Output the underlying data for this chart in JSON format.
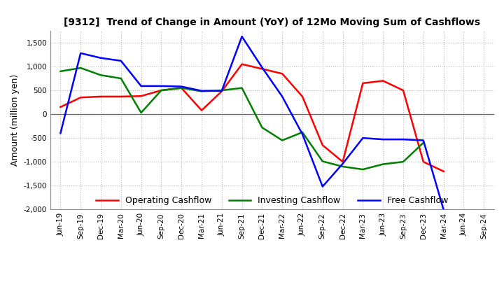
{
  "title": "[9312]  Trend of Change in Amount (YoY) of 12Mo Moving Sum of Cashflows",
  "ylabel": "Amount (million yen)",
  "xlabels": [
    "Jun-19",
    "Sep-19",
    "Dec-19",
    "Mar-20",
    "Jun-20",
    "Sep-20",
    "Dec-20",
    "Mar-21",
    "Jun-21",
    "Sep-21",
    "Dec-21",
    "Mar-22",
    "Jun-22",
    "Sep-22",
    "Dec-22",
    "Mar-23",
    "Jun-23",
    "Sep-23",
    "Dec-23",
    "Mar-24",
    "Jun-24",
    "Sep-24"
  ],
  "operating": [
    150,
    350,
    370,
    370,
    380,
    500,
    550,
    80,
    480,
    1050,
    950,
    850,
    370,
    -650,
    -1000,
    650,
    700,
    500,
    -1000,
    -1200,
    null,
    null
  ],
  "investing": [
    900,
    970,
    820,
    750,
    30,
    500,
    550,
    480,
    500,
    550,
    -280,
    -550,
    -380,
    -990,
    -1100,
    -1160,
    -1050,
    -1000,
    -600,
    null,
    null,
    null
  ],
  "free": [
    -400,
    1280,
    1180,
    1120,
    590,
    590,
    580,
    490,
    490,
    1630,
    980,
    370,
    -420,
    -1520,
    -1040,
    -500,
    -530,
    -530,
    -550,
    -2000,
    null,
    null
  ],
  "operating_color": "#ff0000",
  "investing_color": "#008000",
  "free_color": "#0000ff",
  "ylim": [
    -2000,
    1750
  ],
  "yticks": [
    -2000,
    -1500,
    -1000,
    -500,
    0,
    500,
    1000,
    1500
  ],
  "background_color": "#ffffff",
  "grid_color": "#bbbbbb"
}
